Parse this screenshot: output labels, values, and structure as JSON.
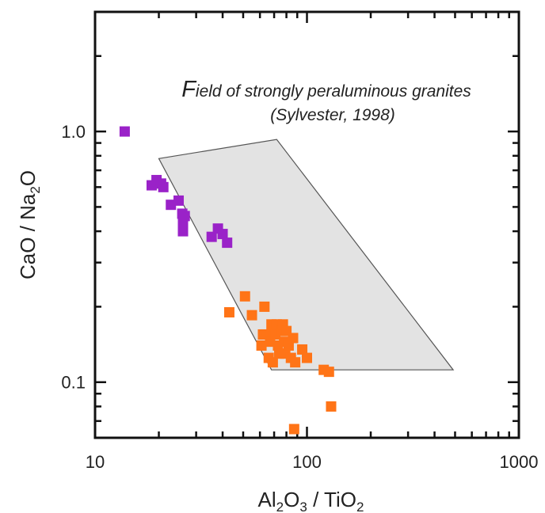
{
  "chart_data": {
    "type": "scatter",
    "title": "",
    "x_scale": "log",
    "y_scale": "log",
    "xlim": [
      10,
      1000
    ],
    "ylim": [
      0.06,
      3.0
    ],
    "grid": false,
    "xlabel": {
      "parts": [
        "Al",
        "2",
        "O",
        "3",
        " / TiO",
        "2"
      ]
    },
    "ylabel": {
      "parts": [
        "CaO / Na",
        "2",
        "O"
      ]
    },
    "x_ticks": [
      {
        "value": 10,
        "label": "10"
      },
      {
        "value": 100,
        "label": "100"
      },
      {
        "value": 1000,
        "label": "1000"
      }
    ],
    "y_ticks": [
      {
        "value": 0.1,
        "label": "0.1"
      },
      {
        "value": 1.0,
        "label": "1.0"
      }
    ],
    "annotation": {
      "line1_first": "F",
      "line1_rest": "ield of strongly peraluminous granites",
      "line2": "(Sylvester, 1998)"
    },
    "field_polygon": {
      "fill": "#e3e3e3",
      "stroke": "#555555",
      "points": [
        [
          20,
          0.78
        ],
        [
          72,
          0.93
        ],
        [
          490,
          0.112
        ],
        [
          68,
          0.112
        ]
      ]
    },
    "series": [
      {
        "color": "#9a22c8",
        "points": [
          [
            13.8,
            1.0
          ],
          [
            18.5,
            0.61
          ],
          [
            19.5,
            0.64
          ],
          [
            20.5,
            0.62
          ],
          [
            21,
            0.6
          ],
          [
            22.8,
            0.51
          ],
          [
            24.8,
            0.53
          ],
          [
            25.8,
            0.47
          ],
          [
            26.5,
            0.46
          ],
          [
            26,
            0.43
          ],
          [
            26,
            0.4
          ],
          [
            35.5,
            0.38
          ],
          [
            38,
            0.41
          ],
          [
            40,
            0.39
          ],
          [
            42,
            0.36
          ]
        ]
      },
      {
        "color": "#ff7417",
        "points": [
          [
            43,
            0.19
          ],
          [
            51,
            0.22
          ],
          [
            55,
            0.185
          ],
          [
            61,
            0.14
          ],
          [
            62,
            0.155
          ],
          [
            63,
            0.2
          ],
          [
            64,
            0.155
          ],
          [
            66,
            0.125
          ],
          [
            67,
            0.145
          ],
          [
            68,
            0.17
          ],
          [
            69,
            0.12
          ],
          [
            71,
            0.155
          ],
          [
            72,
            0.17
          ],
          [
            73,
            0.14
          ],
          [
            74,
            0.13
          ],
          [
            76,
            0.16
          ],
          [
            77,
            0.17
          ],
          [
            78,
            0.145
          ],
          [
            79,
            0.13
          ],
          [
            80,
            0.16
          ],
          [
            82,
            0.14
          ],
          [
            84,
            0.125
          ],
          [
            86,
            0.15
          ],
          [
            88,
            0.12
          ],
          [
            95,
            0.135
          ],
          [
            100,
            0.125
          ],
          [
            120,
            0.112
          ],
          [
            127,
            0.11
          ],
          [
            130,
            0.08
          ],
          [
            87,
            0.065
          ]
        ]
      }
    ]
  }
}
